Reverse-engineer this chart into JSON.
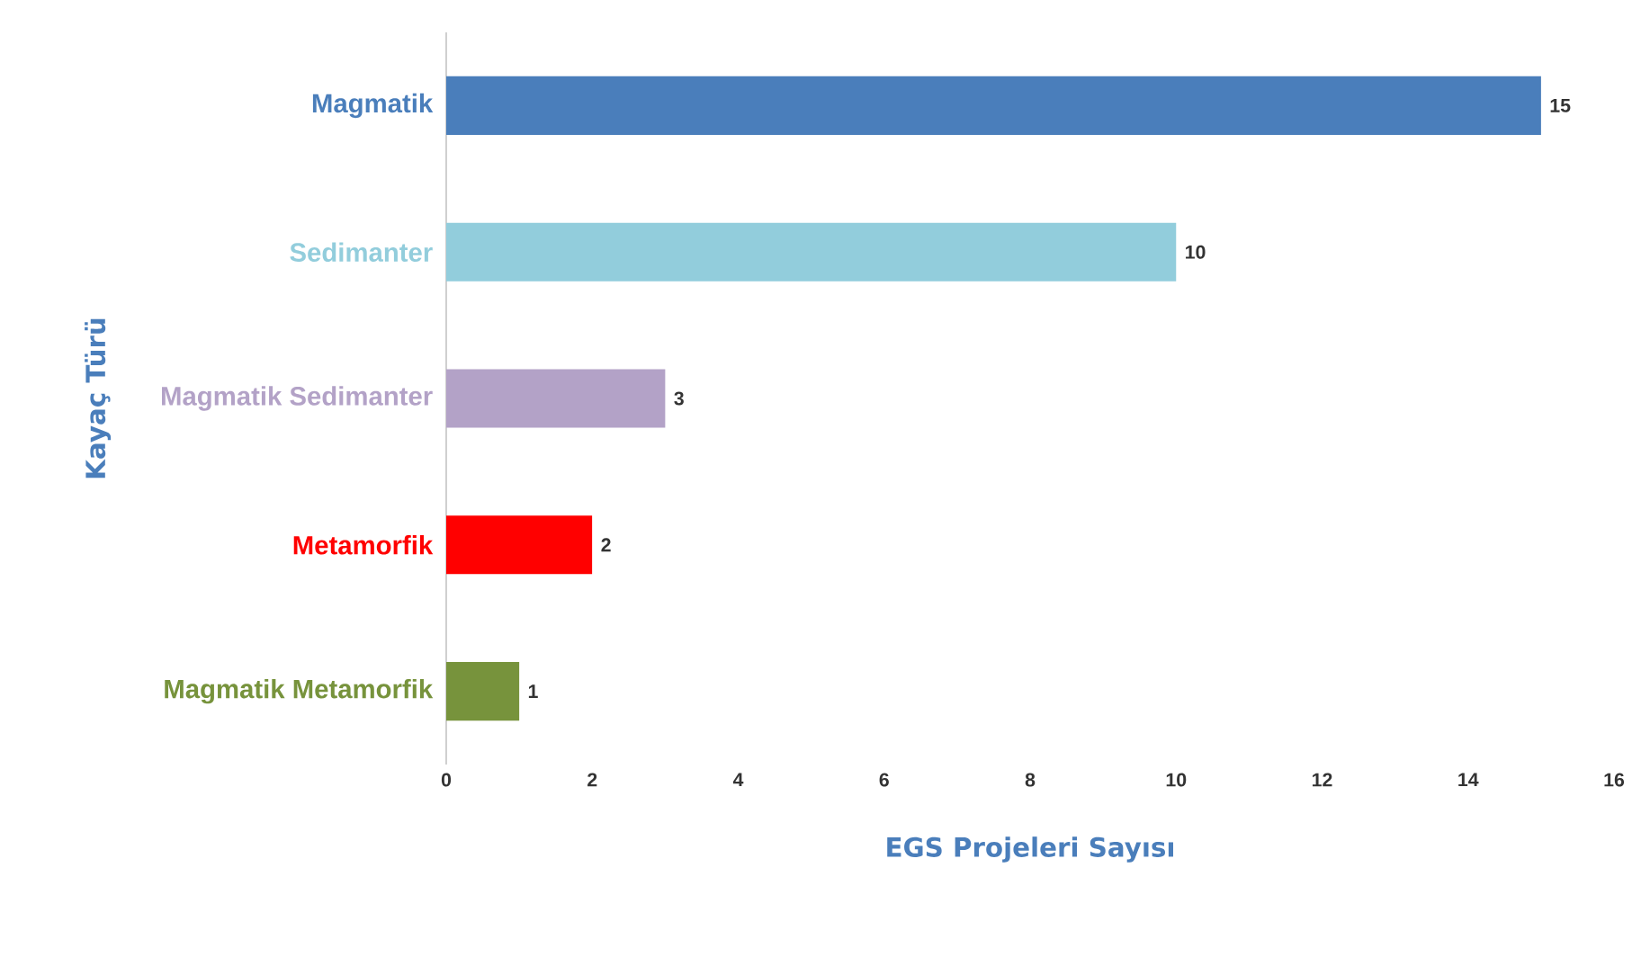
{
  "chart_data": {
    "type": "bar",
    "orientation": "horizontal",
    "categories": [
      "Magmatik",
      "Sedimanter",
      "Magmatik Sedimanter",
      "Metamorfik",
      "Magmatik Metamorfik"
    ],
    "values": [
      15,
      10,
      3,
      2,
      1
    ],
    "colors": [
      "#4a7ebb",
      "#92cddc",
      "#b3a2c7",
      "#ff0000",
      "#77933c"
    ],
    "xlim": [
      0,
      16
    ],
    "xticks": [
      0,
      2,
      4,
      6,
      8,
      10,
      12,
      14,
      16
    ],
    "xlabel": "EGS Projeleri Sayısı",
    "ylabel": "Kayaç Türü",
    "data_labels": true,
    "grid": false
  }
}
